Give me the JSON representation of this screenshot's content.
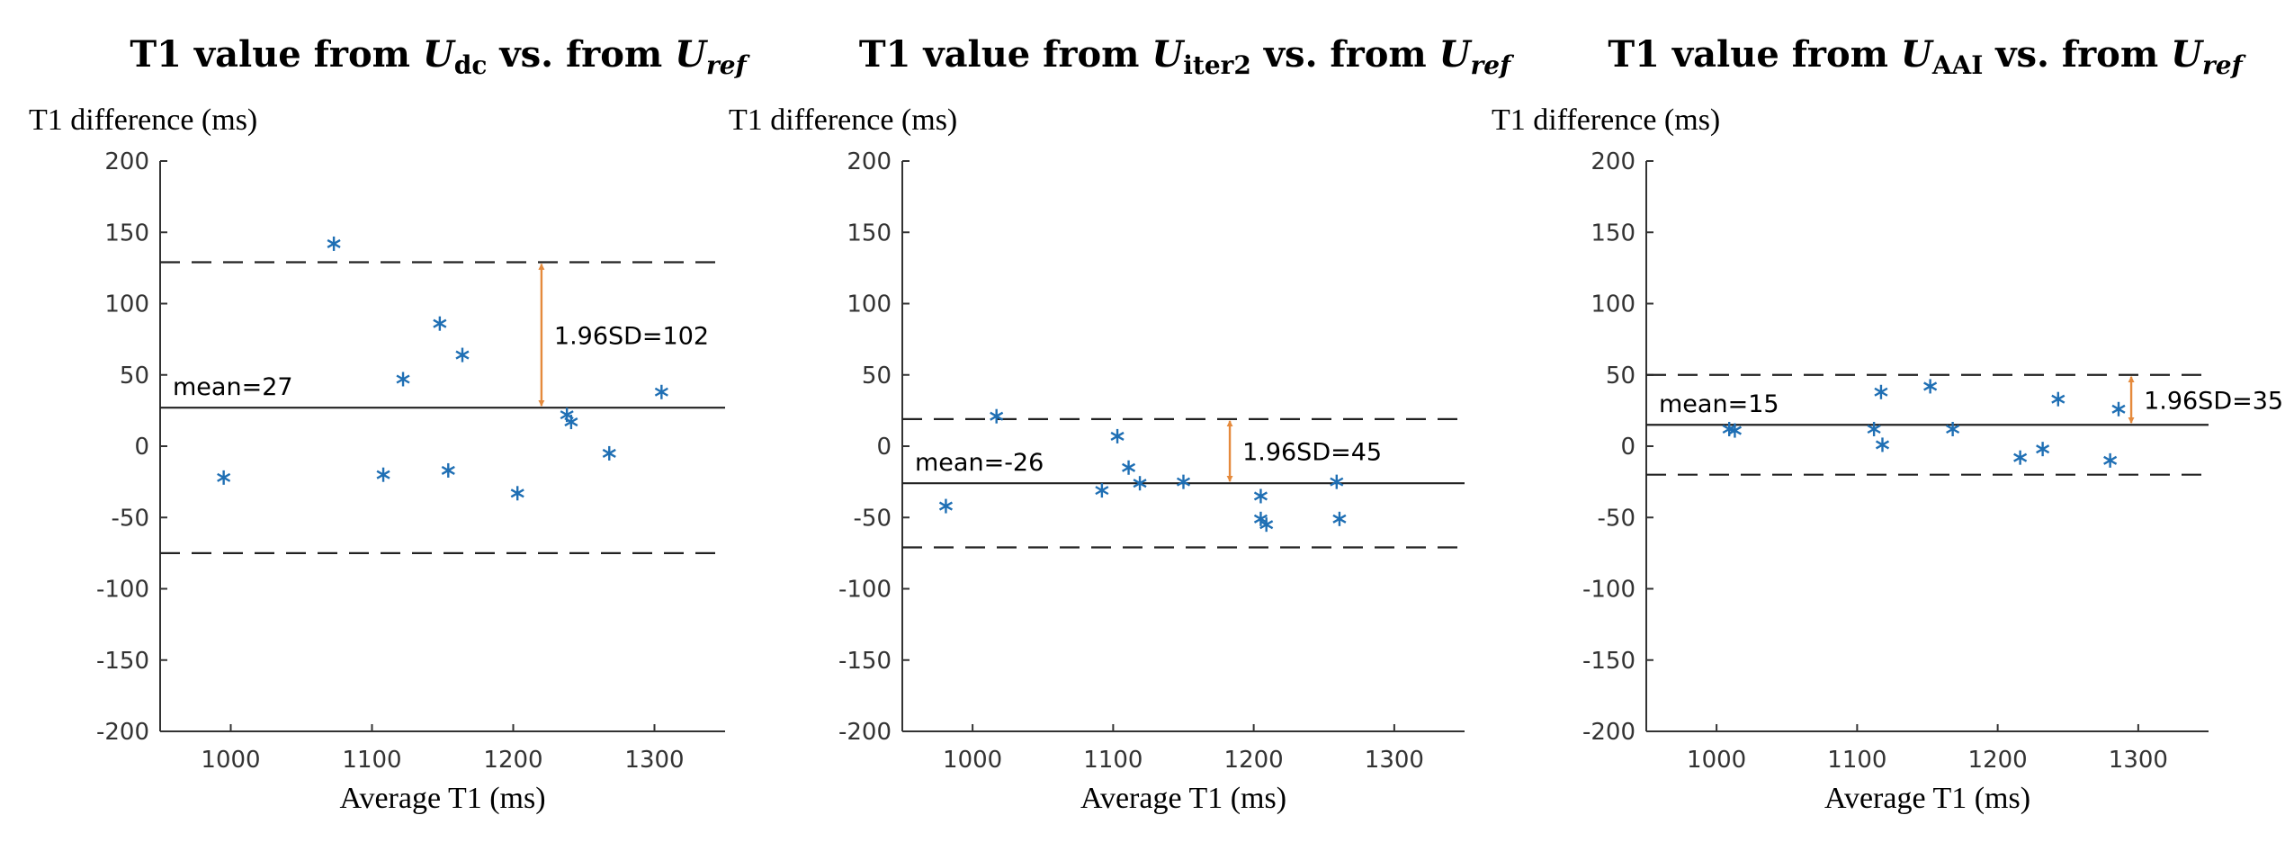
{
  "chart_data": [
    {
      "type": "scatter",
      "title": {
        "prefix": "T1 value from ",
        "sub_left": "dc",
        "mid": " vs. from ",
        "sub_right": "ref",
        "var": "U"
      },
      "ylabel": "T1 difference (ms)",
      "xlabel": "Average T1 (ms)",
      "xlim": [
        950,
        1350
      ],
      "ylim": [
        -200,
        200
      ],
      "xticks": [
        1000,
        1100,
        1200,
        1300
      ],
      "yticks": [
        200,
        150,
        100,
        50,
        0,
        -50,
        -100,
        -150,
        -200
      ],
      "mean": 27,
      "upper_loa": 129,
      "lower_loa": -75,
      "mean_label": "mean=27",
      "sd_label": "1.96SD=102",
      "arrow_x": 1220,
      "points": [
        [
          995,
          -22
        ],
        [
          1073,
          142
        ],
        [
          1108,
          -20
        ],
        [
          1122,
          47
        ],
        [
          1148,
          86
        ],
        [
          1154,
          -17
        ],
        [
          1164,
          64
        ],
        [
          1203,
          -33
        ],
        [
          1238,
          22
        ],
        [
          1241,
          17
        ],
        [
          1268,
          -5
        ],
        [
          1305,
          38
        ]
      ]
    },
    {
      "type": "scatter",
      "title": {
        "prefix": "T1 value from ",
        "sub_left": "iter2",
        "mid": " vs. from ",
        "sub_right": "ref",
        "var": "U"
      },
      "ylabel": "T1 difference (ms)",
      "xlabel": "Average T1 (ms)",
      "xlim": [
        950,
        1350
      ],
      "ylim": [
        -200,
        200
      ],
      "xticks": [
        1000,
        1100,
        1200,
        1300
      ],
      "yticks": [
        200,
        150,
        100,
        50,
        0,
        -50,
        -100,
        -150,
        -200
      ],
      "mean": -26,
      "upper_loa": 19,
      "lower_loa": -71,
      "mean_label": "mean=-26",
      "sd_label": "1.96SD=45",
      "arrow_x": 1183,
      "points": [
        [
          981,
          -42
        ],
        [
          1017,
          21
        ],
        [
          1092,
          -31
        ],
        [
          1103,
          7
        ],
        [
          1111,
          -15
        ],
        [
          1119,
          -26
        ],
        [
          1150,
          -25
        ],
        [
          1205,
          -35
        ],
        [
          1205,
          -51
        ],
        [
          1209,
          -55
        ],
        [
          1259,
          -25
        ],
        [
          1261,
          -51
        ]
      ]
    },
    {
      "type": "scatter",
      "title": {
        "prefix": "T1 value from ",
        "sub_left": "AAI",
        "mid": " vs. from ",
        "sub_right": "ref",
        "var": "U"
      },
      "ylabel": "T1 difference (ms)",
      "xlabel": "Average T1 (ms)",
      "xlim": [
        950,
        1350
      ],
      "ylim": [
        -200,
        200
      ],
      "xticks": [
        1000,
        1100,
        1200,
        1300
      ],
      "yticks": [
        200,
        150,
        100,
        50,
        0,
        -50,
        -100,
        -150,
        -200
      ],
      "mean": 15,
      "upper_loa": 50,
      "lower_loa": -20,
      "mean_label": "mean=15",
      "sd_label": "1.96SD=35",
      "arrow_x": 1295,
      "points": [
        [
          1009,
          12
        ],
        [
          1013,
          11
        ],
        [
          1112,
          12
        ],
        [
          1117,
          38
        ],
        [
          1118,
          1
        ],
        [
          1152,
          42
        ],
        [
          1168,
          12
        ],
        [
          1216,
          -8
        ],
        [
          1232,
          -2
        ],
        [
          1243,
          33
        ],
        [
          1280,
          -10
        ],
        [
          1286,
          26
        ]
      ]
    }
  ]
}
